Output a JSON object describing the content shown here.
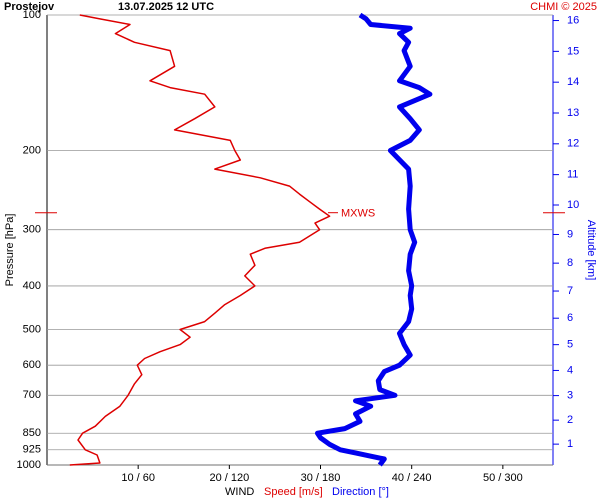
{
  "chart_data": {
    "type": "line",
    "title": "Prostejov",
    "subtitle": "13.07.2025 12 UTC",
    "credit": "CHMI © 2025",
    "ylabel": "Pressure [hPa]",
    "y2label": "Altitude [km]",
    "xlabel": "WIND",
    "log_y": true,
    "grid": true,
    "ylim": [
      1000,
      100
    ],
    "yticks": [
      100,
      200,
      300,
      400,
      500,
      600,
      700,
      850,
      925,
      1000
    ],
    "xlim": [
      0,
      55.5
    ],
    "xticks": [
      {
        "value": 10,
        "label": "10 / 60"
      },
      {
        "value": 20,
        "label": "20 / 120"
      },
      {
        "value": 30,
        "label": "30 / 180"
      },
      {
        "value": 40,
        "label": "40 / 240"
      },
      {
        "value": 50,
        "label": "50 / 300"
      }
    ],
    "y2ticks": [
      1,
      2,
      3,
      4,
      5,
      6,
      7,
      8,
      9,
      10,
      11,
      12,
      13,
      14,
      15,
      16
    ],
    "annotation": {
      "text": "MXWS",
      "pressure": 275
    },
    "series": [
      {
        "name": "Speed [m/s]",
        "color": "#dd0000",
        "width": 1.5,
        "scale": 1,
        "y": [
          1000,
          990,
          950,
          925,
          880,
          850,
          820,
          780,
          740,
          700,
          660,
          630,
          600,
          580,
          560,
          540,
          520,
          500,
          480,
          460,
          440,
          420,
          400,
          380,
          360,
          340,
          330,
          320,
          300,
          290,
          280,
          270,
          260,
          250,
          240,
          230,
          220,
          210,
          200,
          190,
          180,
          170,
          160,
          150,
          145,
          140,
          130,
          120,
          115,
          110,
          105,
          102,
          100
        ],
        "values": [
          2.5,
          5.8,
          5.5,
          4.2,
          3.4,
          3.9,
          5.3,
          6.4,
          8.0,
          8.9,
          9.6,
          10.4,
          9.9,
          10.7,
          12.4,
          14.6,
          15.7,
          14.6,
          17.3,
          18.4,
          19.5,
          21.2,
          22.8,
          21.7,
          22.8,
          22.3,
          23.9,
          27.7,
          29.9,
          29.4,
          31.0,
          29.9,
          28.8,
          27.7,
          26.6,
          23.4,
          18.4,
          21.2,
          20.6,
          20.1,
          14.0,
          16.2,
          18.4,
          17.3,
          13.5,
          11.3,
          14.0,
          13.5,
          9.6,
          7.5,
          9.1,
          5.8,
          3.6
        ]
      },
      {
        "name": "Direction [°]",
        "color": "#0000ee",
        "width": 5,
        "scale": 6,
        "y": [
          1000,
          970,
          940,
          925,
          900,
          870,
          850,
          830,
          800,
          770,
          740,
          720,
          700,
          680,
          650,
          620,
          600,
          570,
          540,
          510,
          480,
          450,
          420,
          400,
          370,
          340,
          320,
          300,
          270,
          240,
          220,
          200,
          190,
          180,
          170,
          160,
          150,
          145,
          140,
          130,
          120,
          115,
          110,
          107,
          105,
          102,
          100
        ],
        "values": [
          219,
          222,
          203,
          193,
          186,
          180,
          178,
          196,
          206,
          203,
          213,
          203,
          229,
          219,
          218,
          222,
          232,
          239,
          235,
          232,
          238,
          240,
          239,
          240,
          238,
          239,
          242,
          239,
          238,
          239,
          238,
          226,
          239,
          245,
          239,
          232,
          252,
          245,
          232,
          239,
          235,
          238,
          232,
          239,
          213,
          210,
          206
        ]
      }
    ]
  }
}
